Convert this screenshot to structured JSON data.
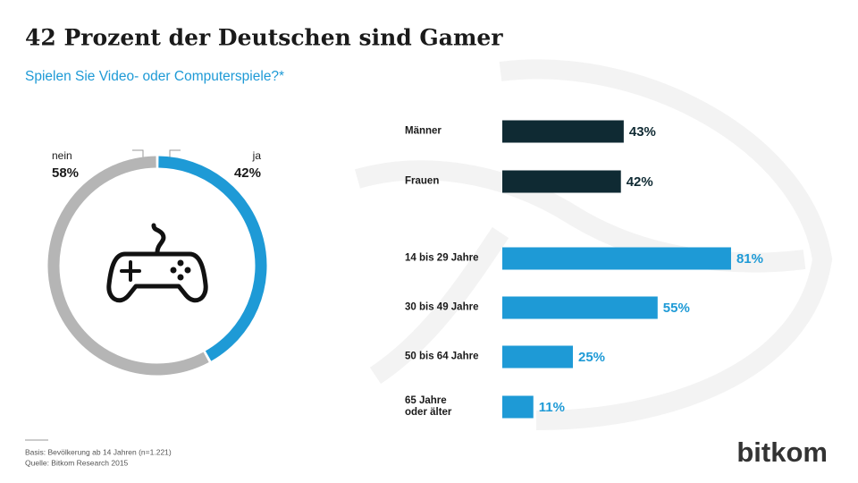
{
  "header": {
    "title": "42 Prozent der Deutschen sind Gamer",
    "subtitle": "Spielen Sie Video- oder Computerspiele?*"
  },
  "chart_data": [
    {
      "type": "donut",
      "categories": [
        "nein",
        "ja"
      ],
      "values": [
        58,
        42
      ],
      "value_labels": [
        "58%",
        "42%"
      ],
      "colors": [
        "#b5b5b5",
        "#1e9ad6"
      ]
    },
    {
      "type": "hbar",
      "categories": [
        "Männer",
        "Frauen",
        "14 bis 29 Jahre",
        "30 bis 49 Jahre",
        "50 bis 64 Jahre",
        "65 Jahre\noder älter"
      ],
      "values": [
        43,
        42,
        81,
        55,
        25,
        11
      ],
      "value_labels": [
        "43%",
        "42%",
        "81%",
        "55%",
        "25%",
        "11%"
      ],
      "colors": [
        "#0f2a33",
        "#0f2a33",
        "#1e9ad6",
        "#1e9ad6",
        "#1e9ad6",
        "#1e9ad6"
      ]
    }
  ],
  "footer": {
    "notes": [
      "Basis: Bevölkerung ab 14 Jahren (n=1.221)",
      "Quelle: Bitkom Research 2015"
    ],
    "logo": "bitkom"
  }
}
